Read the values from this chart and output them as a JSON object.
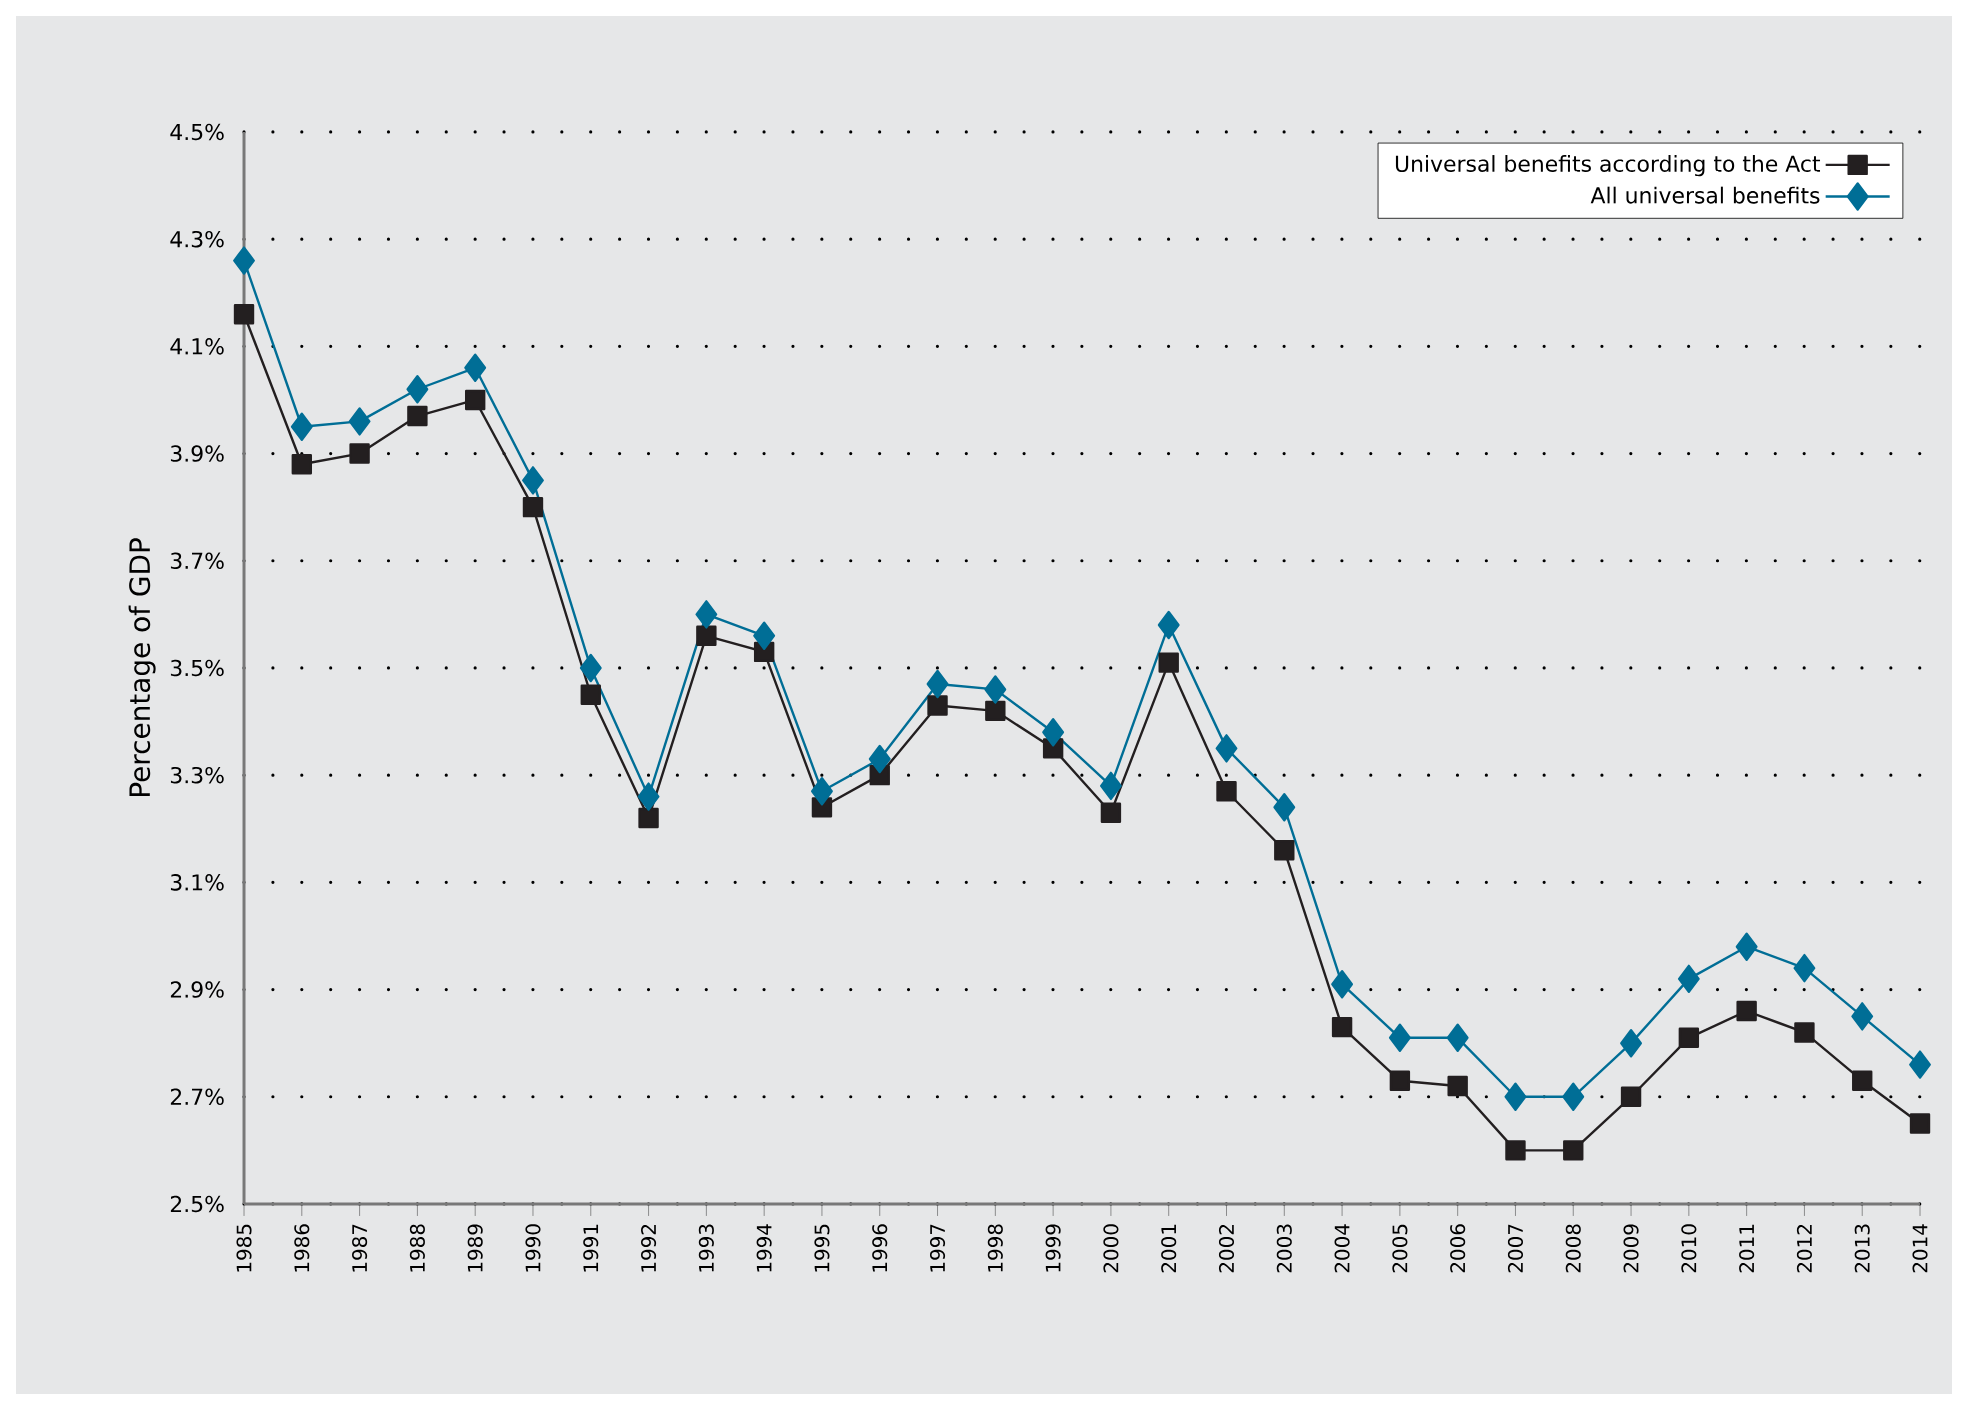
{
  "chart_data": {
    "type": "line",
    "ylabel": "Percentage of GDP",
    "categories": [
      "1985",
      "1986",
      "1987",
      "1988",
      "1989",
      "1990",
      "1991",
      "1992",
      "1993",
      "1994",
      "1995",
      "1996",
      "1997",
      "1998",
      "1999",
      "2000",
      "2001",
      "2002",
      "2003",
      "2004",
      "2005",
      "2006",
      "2007",
      "2008",
      "2009",
      "2010",
      "2011",
      "2012",
      "2013",
      "2014"
    ],
    "series": [
      {
        "name": "Universal benefits according to the Act",
        "color": "#231f20",
        "marker": "square",
        "values": [
          4.16,
          3.88,
          3.9,
          3.97,
          4.0,
          3.8,
          3.45,
          3.22,
          3.56,
          3.53,
          3.24,
          3.3,
          3.43,
          3.42,
          3.35,
          3.23,
          3.51,
          3.27,
          3.16,
          2.83,
          2.73,
          2.72,
          2.6,
          2.6,
          2.7,
          2.81,
          2.86,
          2.82,
          2.73,
          2.65
        ]
      },
      {
        "name": "All universal benefits",
        "color": "#006e96",
        "marker": "diamond",
        "values": [
          4.26,
          3.95,
          3.96,
          4.02,
          4.06,
          3.85,
          3.5,
          3.26,
          3.6,
          3.56,
          3.27,
          3.33,
          3.47,
          3.46,
          3.38,
          3.28,
          3.58,
          3.35,
          3.24,
          2.91,
          2.81,
          2.81,
          2.7,
          2.7,
          2.8,
          2.92,
          2.98,
          2.94,
          2.85,
          2.76
        ]
      }
    ],
    "ylim": [
      2.5,
      4.5
    ],
    "yticks": [
      {
        "value": 2.5,
        "label": "2.5%"
      },
      {
        "value": 2.7,
        "label": "2.7%"
      },
      {
        "value": 2.9,
        "label": "2.9%"
      },
      {
        "value": 3.1,
        "label": "3.1%"
      },
      {
        "value": 3.3,
        "label": "3.3%"
      },
      {
        "value": 3.5,
        "label": "3.5%"
      },
      {
        "value": 3.7,
        "label": "3.7%"
      },
      {
        "value": 3.9,
        "label": "3.9%"
      },
      {
        "value": 4.1,
        "label": "4.1%"
      },
      {
        "value": 4.3,
        "label": "4.3%"
      },
      {
        "value": 4.5,
        "label": "4.5%"
      }
    ],
    "grid": "y",
    "legend": "top right",
    "line_style": "solid"
  }
}
